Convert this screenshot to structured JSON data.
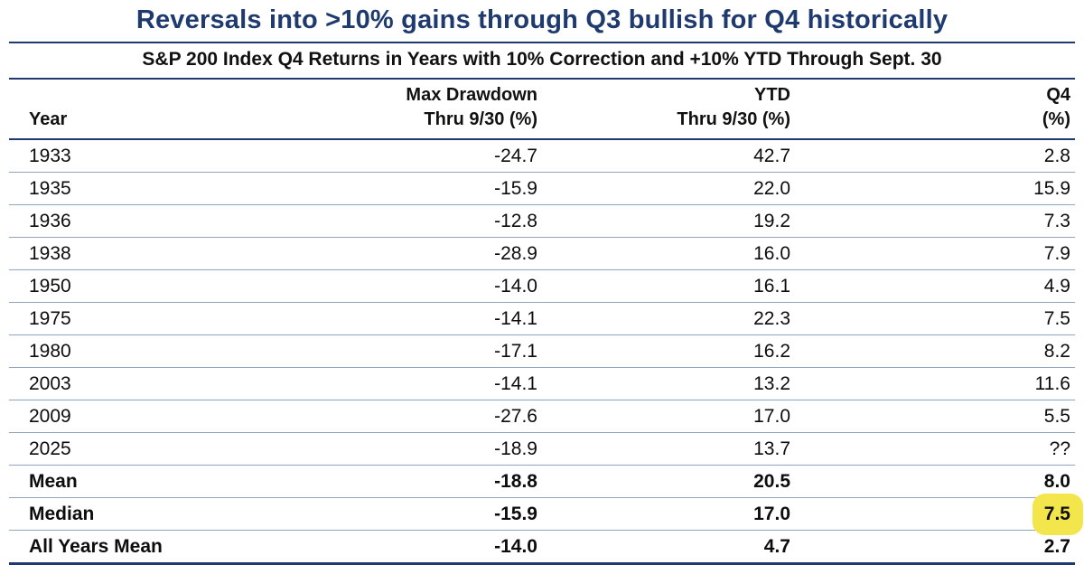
{
  "colors": {
    "navy": "#1e3a6e",
    "separator": "#90a4bc",
    "highlight_yellow": "#f3e54c",
    "text": "#111111"
  },
  "chart_data": {
    "type": "table",
    "title": "Reversals into >10% gains through Q3 bullish for Q4 historically",
    "subtitle": "S&P 200 Index Q4 Returns in Years with 10% Correction and +10% YTD Through Sept. 30",
    "layout": {
      "grid": "horizontal-rules",
      "summary_rows_bold": true,
      "highlighted_cell": "Median Q4"
    },
    "columns": [
      {
        "id": "year",
        "header_line1": "",
        "header_line2": "Year",
        "align": "left"
      },
      {
        "id": "max_drawdown",
        "header_line1": "Max Drawdown",
        "header_line2": "Thru 9/30 (%)",
        "align": "right"
      },
      {
        "id": "ytd",
        "header_line1": "YTD",
        "header_line2": "Thru 9/30 (%)",
        "align": "right"
      },
      {
        "id": "q4",
        "header_line1": "Q4",
        "header_line2": "(%)",
        "align": "right"
      }
    ],
    "rows": [
      {
        "year": "1933",
        "max_drawdown": -24.7,
        "ytd": 42.7,
        "q4": 2.8
      },
      {
        "year": "1935",
        "max_drawdown": -15.9,
        "ytd": 22.0,
        "q4": 15.9
      },
      {
        "year": "1936",
        "max_drawdown": -12.8,
        "ytd": 19.2,
        "q4": 7.3
      },
      {
        "year": "1938",
        "max_drawdown": -28.9,
        "ytd": 16.0,
        "q4": 7.9
      },
      {
        "year": "1950",
        "max_drawdown": -14.0,
        "ytd": 16.1,
        "q4": 4.9
      },
      {
        "year": "1975",
        "max_drawdown": -14.1,
        "ytd": 22.3,
        "q4": 7.5
      },
      {
        "year": "1980",
        "max_drawdown": -17.1,
        "ytd": 16.2,
        "q4": 8.2
      },
      {
        "year": "2003",
        "max_drawdown": -14.1,
        "ytd": 13.2,
        "q4": 11.6
      },
      {
        "year": "2009",
        "max_drawdown": -27.6,
        "ytd": 17.0,
        "q4": 5.5
      },
      {
        "year": "2025",
        "max_drawdown": -18.9,
        "ytd": 13.7,
        "q4": "??"
      },
      {
        "year": "Mean",
        "max_drawdown": -18.8,
        "ytd": 20.5,
        "q4": 8.0,
        "bold": true
      },
      {
        "year": "Median",
        "max_drawdown": -15.9,
        "ytd": 17.0,
        "q4": 7.5,
        "bold": true,
        "highlight_q4": true
      },
      {
        "year": "All Years Mean",
        "max_drawdown": -14.0,
        "ytd": 4.7,
        "q4": 2.7,
        "bold": true
      }
    ]
  }
}
